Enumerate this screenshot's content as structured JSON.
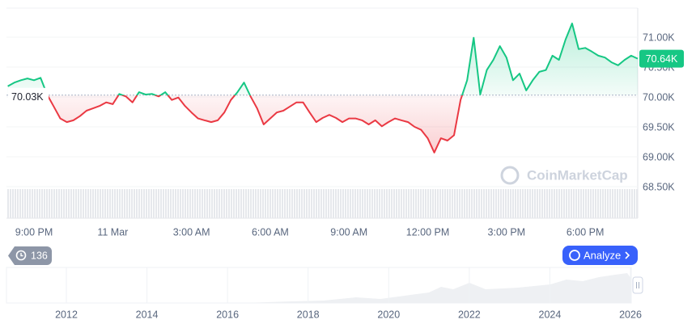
{
  "chart_data": {
    "type": "line",
    "categories": [
      null,
      null,
      null,
      null,
      "9:00 PM",
      null,
      null,
      null,
      null,
      null,
      null,
      null,
      null,
      null,
      null,
      null,
      "11 Mar",
      null,
      null,
      null,
      null,
      null,
      null,
      null,
      null,
      null,
      null,
      null,
      "3:00 AM",
      null,
      null,
      null,
      null,
      null,
      null,
      null,
      null,
      null,
      null,
      null,
      "6:00 AM",
      null,
      null,
      null,
      null,
      null,
      null,
      null,
      null,
      null,
      null,
      null,
      "9:00 AM",
      null,
      null,
      null,
      null,
      null,
      null,
      null,
      null,
      null,
      null,
      null,
      "12:00 PM",
      null,
      null,
      null,
      null,
      null,
      null,
      null,
      null,
      null,
      null,
      null,
      "3:00 PM",
      null,
      null,
      null,
      null,
      null,
      null,
      null,
      null,
      null,
      null,
      null,
      "6:00 PM",
      null,
      null,
      null,
      null,
      null,
      null,
      null,
      null
    ],
    "values": [
      70180,
      70240,
      70280,
      70310,
      70280,
      70320,
      70040,
      69840,
      69640,
      69580,
      69610,
      69680,
      69770,
      69810,
      69850,
      69910,
      69880,
      70050,
      70010,
      69910,
      70080,
      70040,
      70050,
      70010,
      70080,
      69950,
      69990,
      69850,
      69740,
      69640,
      69610,
      69580,
      69610,
      69740,
      69950,
      70080,
      70240,
      70010,
      69810,
      69540,
      69640,
      69740,
      69770,
      69840,
      69910,
      69910,
      69740,
      69580,
      69650,
      69700,
      69650,
      69580,
      69640,
      69640,
      69610,
      69540,
      69610,
      69510,
      69580,
      69640,
      69610,
      69580,
      69500,
      69450,
      69310,
      69070,
      69310,
      69270,
      69360,
      69950,
      70280,
      70990,
      70040,
      70450,
      70620,
      70850,
      70660,
      70280,
      70390,
      70110,
      70280,
      70420,
      70450,
      70690,
      70620,
      70960,
      71230,
      70800,
      70820,
      70760,
      70690,
      70660,
      70580,
      70530,
      70620,
      70690,
      70640
    ],
    "value_labels": [
      null,
      null,
      null,
      null,
      null,
      null,
      null,
      null,
      null,
      null,
      null,
      null,
      null,
      null,
      null,
      null,
      null,
      null,
      null,
      null,
      null,
      null,
      null,
      null,
      null,
      null,
      null,
      null,
      null,
      null,
      null,
      null,
      null,
      null,
      null,
      null,
      null,
      null,
      null,
      null,
      null,
      null,
      null,
      null,
      null,
      null,
      null,
      null,
      null,
      null,
      null,
      null,
      null,
      null,
      null,
      null,
      null,
      null,
      null,
      null,
      null,
      null,
      null,
      null,
      null,
      null,
      null,
      null,
      null,
      null,
      null,
      null,
      null,
      null,
      null,
      null,
      null,
      null,
      null,
      null,
      null,
      null,
      null,
      null,
      null,
      null,
      null,
      null,
      null,
      null,
      null,
      null,
      null,
      null,
      null,
      null,
      "70.64K"
    ],
    "baseline": 70030,
    "baseline_label": "70.03K",
    "colors": {
      "up": "#16c784",
      "down": "#ea3943"
    },
    "ylim": [
      68500,
      71500
    ],
    "yticks": [
      {
        "value": 71000,
        "label": "71.00K"
      },
      {
        "value": 70500,
        "label": "70.50K"
      },
      {
        "value": 70000,
        "label": "70.00K"
      },
      {
        "value": 69500,
        "label": "69.50K"
      },
      {
        "value": 69000,
        "label": "69.00K"
      },
      {
        "value": 68500,
        "label": "68.50K"
      }
    ],
    "grid": true
  },
  "watermark": "CoinMarketCap",
  "history_badge": "136",
  "analyze_button": "Analyze",
  "navigator": {
    "labels": [
      "2012",
      "2014",
      "2016",
      "2018",
      "2020",
      "2022",
      "2024",
      "2026"
    ]
  }
}
